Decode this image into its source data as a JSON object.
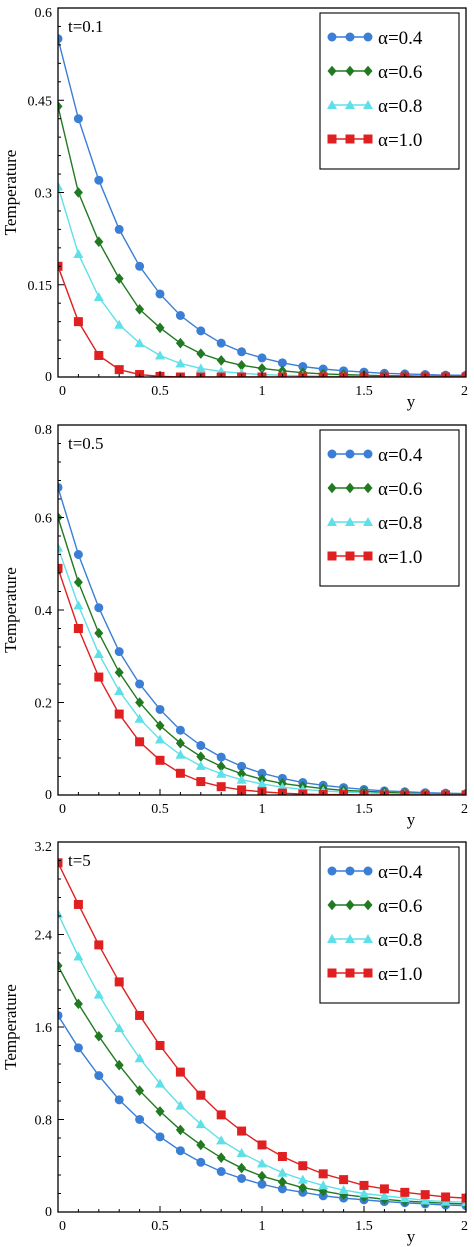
{
  "chart_data": [
    {
      "type": "line",
      "annotation": "t=0.1",
      "xlabel": "y",
      "ylabel": "Temperature",
      "xlim": [
        0,
        2
      ],
      "ylim": [
        0,
        0.6
      ],
      "xticks": [
        "0",
        "0.5",
        "1",
        "1.5",
        "2"
      ],
      "yticks": [
        "0",
        "0.15",
        "0.3",
        "0.45",
        "0.6"
      ],
      "x": [
        0,
        0.1,
        0.2,
        0.3,
        0.4,
        0.5,
        0.6,
        0.7,
        0.8,
        0.9,
        1.0,
        1.1,
        1.2,
        1.3,
        1.4,
        1.5,
        1.6,
        1.7,
        1.8,
        1.9,
        2.0
      ],
      "legend_position": "top-right",
      "series": [
        {
          "name": "α=0.4",
          "color": "#3a7fd5",
          "marker": "circle",
          "values": [
            0.55,
            0.42,
            0.32,
            0.24,
            0.18,
            0.135,
            0.1,
            0.075,
            0.055,
            0.041,
            0.031,
            0.023,
            0.017,
            0.013,
            0.01,
            0.008,
            0.006,
            0.005,
            0.004,
            0.003,
            0.003
          ]
        },
        {
          "name": "α=0.6",
          "color": "#217a21",
          "marker": "diamond",
          "values": [
            0.44,
            0.3,
            0.22,
            0.16,
            0.11,
            0.08,
            0.055,
            0.038,
            0.027,
            0.019,
            0.014,
            0.01,
            0.007,
            0.005,
            0.004,
            0.003,
            0.002,
            0.002,
            0.001,
            0.001,
            0.001
          ]
        },
        {
          "name": "α=0.8",
          "color": "#5fe0e8",
          "marker": "triangle",
          "values": [
            0.31,
            0.2,
            0.13,
            0.085,
            0.055,
            0.035,
            0.022,
            0.014,
            0.009,
            0.006,
            0.004,
            0.003,
            0.002,
            0.001,
            0.001,
            0.001,
            0,
            0,
            0,
            0,
            0
          ]
        },
        {
          "name": "α=1.0",
          "color": "#e02020",
          "marker": "square",
          "values": [
            0.18,
            0.09,
            0.035,
            0.012,
            0.004,
            0.001,
            0,
            0,
            0,
            0,
            0,
            0,
            0,
            0,
            0,
            0,
            0,
            0,
            0,
            0,
            0
          ]
        }
      ]
    },
    {
      "type": "line",
      "annotation": "t=0.5",
      "xlabel": "y",
      "ylabel": "Temperature",
      "xlim": [
        0,
        2
      ],
      "ylim": [
        0,
        0.8
      ],
      "xticks": [
        "0",
        "0.5",
        "1",
        "1.5",
        "2"
      ],
      "yticks": [
        "0",
        "0.2",
        "0.4",
        "0.6",
        "0.8"
      ],
      "x": [
        0,
        0.1,
        0.2,
        0.3,
        0.4,
        0.5,
        0.6,
        0.7,
        0.8,
        0.9,
        1.0,
        1.1,
        1.2,
        1.3,
        1.4,
        1.5,
        1.6,
        1.7,
        1.8,
        1.9,
        2.0
      ],
      "legend_position": "top-right",
      "series": [
        {
          "name": "α=0.4",
          "color": "#3a7fd5",
          "marker": "circle",
          "values": [
            0.665,
            0.52,
            0.405,
            0.31,
            0.24,
            0.185,
            0.14,
            0.107,
            0.082,
            0.062,
            0.047,
            0.036,
            0.027,
            0.021,
            0.016,
            0.012,
            0.009,
            0.007,
            0.005,
            0.004,
            0.003
          ]
        },
        {
          "name": "α=0.6",
          "color": "#217a21",
          "marker": "diamond",
          "values": [
            0.6,
            0.46,
            0.35,
            0.265,
            0.2,
            0.15,
            0.112,
            0.083,
            0.062,
            0.046,
            0.034,
            0.025,
            0.019,
            0.014,
            0.01,
            0.008,
            0.006,
            0.004,
            0.003,
            0.002,
            0.002
          ]
        },
        {
          "name": "α=0.8",
          "color": "#5fe0e8",
          "marker": "triangle",
          "values": [
            0.535,
            0.41,
            0.305,
            0.225,
            0.165,
            0.12,
            0.087,
            0.063,
            0.046,
            0.033,
            0.024,
            0.017,
            0.012,
            0.009,
            0.006,
            0.005,
            0.003,
            0.002,
            0.002,
            0.001,
            0.001
          ]
        },
        {
          "name": "α=1.0",
          "color": "#e02020",
          "marker": "square",
          "values": [
            0.49,
            0.36,
            0.255,
            0.175,
            0.115,
            0.075,
            0.047,
            0.029,
            0.018,
            0.011,
            0.007,
            0.004,
            0.002,
            0.001,
            0.001,
            0,
            0,
            0,
            0,
            0,
            0
          ]
        }
      ]
    },
    {
      "type": "line",
      "annotation": "t=5",
      "xlabel": "y",
      "ylabel": "Temperature",
      "xlim": [
        0,
        2
      ],
      "ylim": [
        0,
        3.2
      ],
      "xticks": [
        "0",
        "0.5",
        "1",
        "1.5",
        "2"
      ],
      "yticks": [
        "0",
        "0.8",
        "1.6",
        "2.4",
        "3.2"
      ],
      "x": [
        0,
        0.1,
        0.2,
        0.3,
        0.4,
        0.5,
        0.6,
        0.7,
        0.8,
        0.9,
        1.0,
        1.1,
        1.2,
        1.3,
        1.4,
        1.5,
        1.6,
        1.7,
        1.8,
        1.9,
        2.0
      ],
      "legend_position": "top-right",
      "series": [
        {
          "name": "α=0.4",
          "color": "#3a7fd5",
          "marker": "circle",
          "values": [
            1.7,
            1.42,
            1.18,
            0.97,
            0.8,
            0.65,
            0.53,
            0.43,
            0.35,
            0.29,
            0.24,
            0.2,
            0.17,
            0.14,
            0.12,
            0.105,
            0.09,
            0.08,
            0.07,
            0.06,
            0.055
          ]
        },
        {
          "name": "α=0.6",
          "color": "#217a21",
          "marker": "diamond",
          "values": [
            2.13,
            1.8,
            1.52,
            1.27,
            1.05,
            0.87,
            0.71,
            0.58,
            0.47,
            0.38,
            0.31,
            0.26,
            0.21,
            0.18,
            0.15,
            0.13,
            0.11,
            0.095,
            0.085,
            0.075,
            0.07
          ]
        },
        {
          "name": "α=0.8",
          "color": "#5fe0e8",
          "marker": "triangle",
          "values": [
            2.58,
            2.21,
            1.88,
            1.59,
            1.33,
            1.11,
            0.92,
            0.76,
            0.62,
            0.51,
            0.42,
            0.34,
            0.28,
            0.23,
            0.19,
            0.16,
            0.14,
            0.12,
            0.1,
            0.09,
            0.085
          ]
        },
        {
          "name": "α=1.0",
          "color": "#e02020",
          "marker": "square",
          "values": [
            3.02,
            2.66,
            2.31,
            1.99,
            1.7,
            1.44,
            1.21,
            1.01,
            0.84,
            0.7,
            0.58,
            0.48,
            0.4,
            0.33,
            0.28,
            0.23,
            0.2,
            0.17,
            0.15,
            0.13,
            0.12
          ]
        }
      ]
    }
  ]
}
